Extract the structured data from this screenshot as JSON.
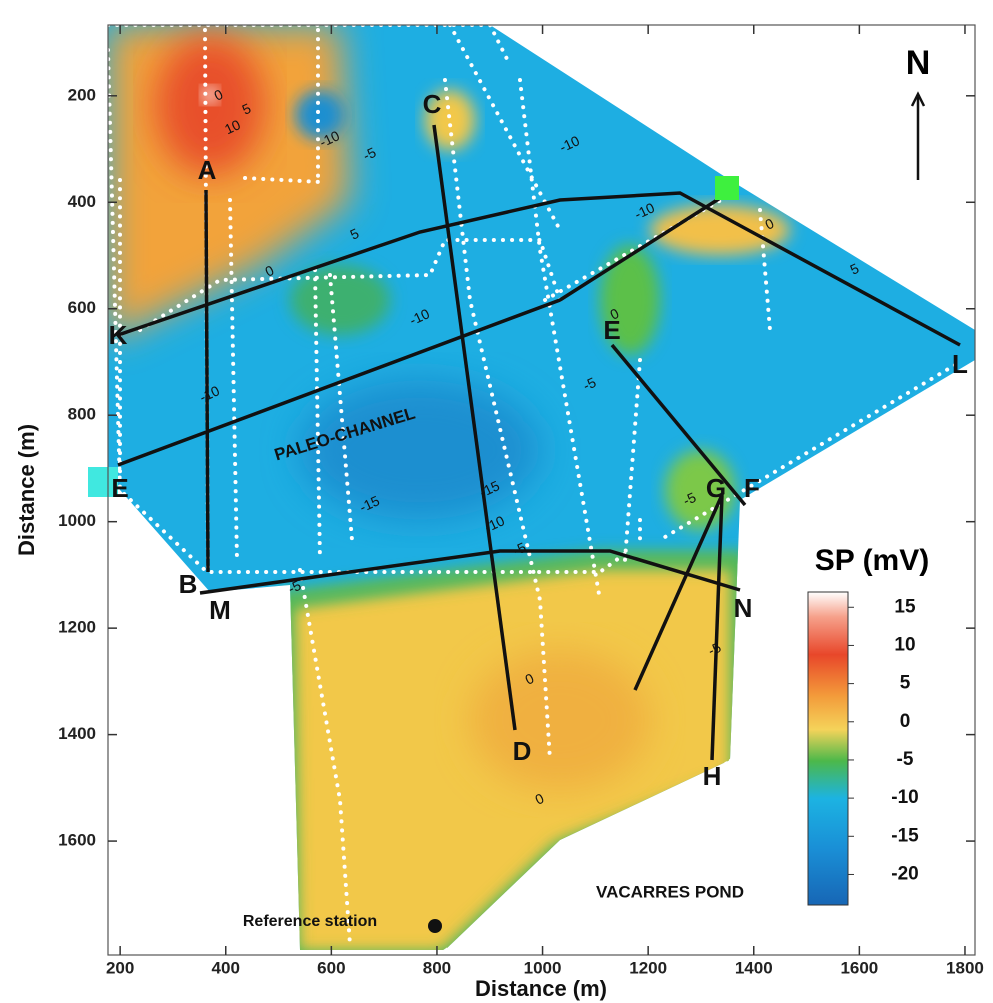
{
  "map": {
    "x_axis": {
      "label": "Distance (m)",
      "lim": [
        177,
        1819
      ],
      "ticks": [
        200,
        400,
        600,
        800,
        1000,
        1200,
        1400,
        1600,
        1800
      ]
    },
    "y_axis": {
      "label": "Distance (m)",
      "lim": [
        67,
        1814
      ],
      "ticks": [
        200,
        400,
        600,
        800,
        1000,
        1200,
        1400,
        1600
      ],
      "inverted": true
    },
    "colorbar": {
      "title": "SP (mV)",
      "lim": [
        -24,
        17
      ],
      "ticks": [
        15,
        10,
        5,
        0,
        -5,
        -10,
        -15,
        -20
      ]
    },
    "profile_labels": [
      "A",
      "B",
      "C",
      "D",
      "E",
      "F",
      "G",
      "H",
      "K",
      "L",
      "M",
      "N",
      "E"
    ],
    "north": "N",
    "paleo_channel": "PALEO-CHANNEL",
    "pond": "VACARRES POND",
    "reference": "Reference station",
    "contour_labels": [
      10,
      5,
      0,
      -10,
      -5,
      -10,
      -10,
      0,
      5,
      5,
      0,
      -10,
      -10,
      0,
      -5,
      -15,
      -15,
      -10,
      -5,
      -5,
      -5,
      0,
      -5,
      0
    ]
  }
}
